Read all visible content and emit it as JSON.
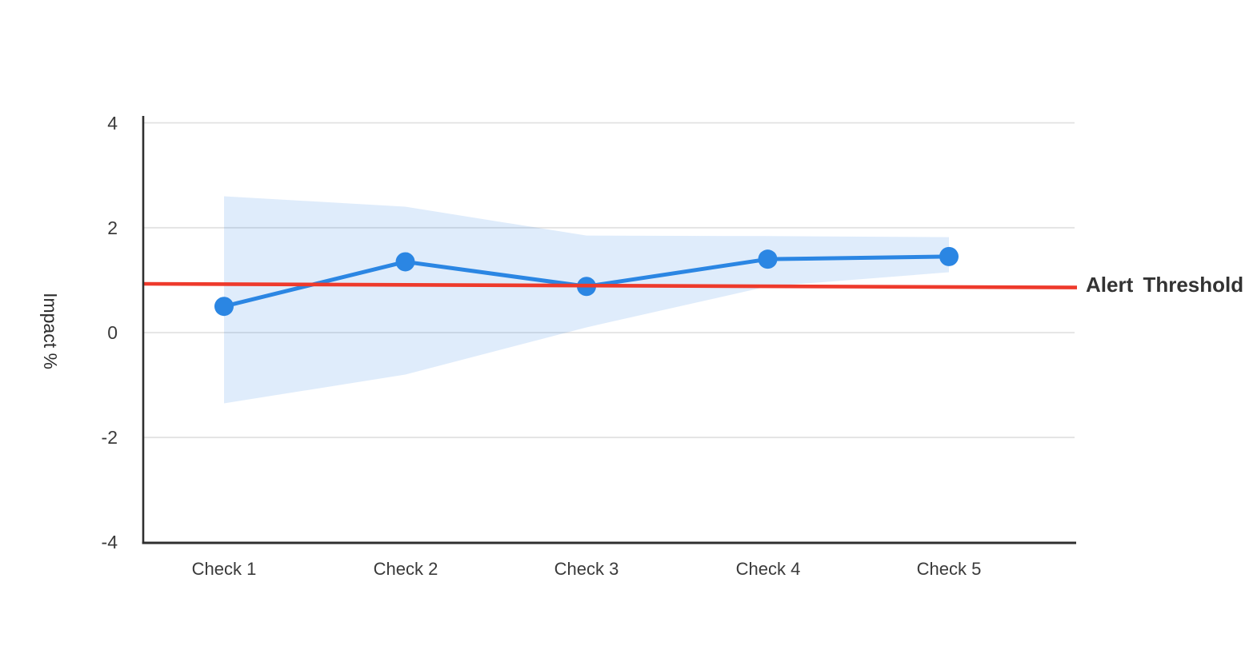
{
  "chart_data": {
    "type": "line",
    "title": "",
    "categories": [
      "Check 1",
      "Check 2",
      "Check 3",
      "Check 4",
      "Check 5"
    ],
    "series": [
      {
        "name": "Impact %",
        "values": [
          0.5,
          1.35,
          0.88,
          1.4,
          1.45
        ],
        "color": "#2b86e3",
        "marker": "circle"
      }
    ],
    "confidence_band": {
      "upper": [
        2.6,
        2.4,
        1.85,
        1.84,
        1.82
      ],
      "lower": [
        -1.35,
        -0.8,
        0.1,
        0.88,
        1.15
      ],
      "color": "#3b87e8"
    },
    "threshold": {
      "label": "Alert Threshold",
      "value": 0.9,
      "start_value": 0.93,
      "end_value": 0.86,
      "color": "#ee3a2c"
    },
    "xlabel": "",
    "ylabel": "Impact %",
    "ylim": [
      -4,
      4
    ],
    "yticks": [
      4,
      2,
      0,
      -2,
      -4
    ],
    "ytick_labels": [
      "4",
      "2",
      "0",
      "-2",
      "-4"
    ],
    "grid": true,
    "gridline_color": "#e2e2e2",
    "axis_color": "#2f2f2f",
    "legend_position": "none"
  }
}
